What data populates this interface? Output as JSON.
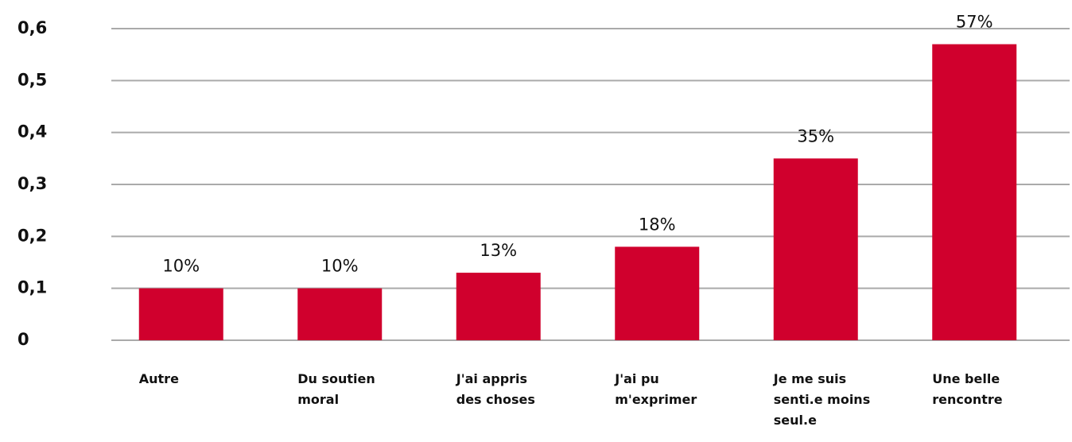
{
  "chart_data": {
    "type": "bar",
    "categories": [
      "Autre",
      "Du soutien moral",
      "J'ai appris des choses",
      "J'ai pu m'exprimer",
      "Je me suis senti.e moins seul.e",
      "Une belle rencontre"
    ],
    "values": [
      0.1,
      0.1,
      0.13,
      0.18,
      0.35,
      0.57
    ],
    "value_labels": [
      "10%",
      "10%",
      "13%",
      "18%",
      "35%",
      "57%"
    ],
    "color": "#d0002d",
    "ylim": [
      0,
      0.6
    ],
    "yticks": [
      0,
      {
        "value": 0.1,
        "label": "0,1"
      },
      {
        "value": 0.2,
        "label": "0,2"
      },
      {
        "value": 0.3,
        "label": "0,3"
      },
      {
        "value": 0.4,
        "label": "0,4"
      },
      {
        "value": 0.5,
        "label": "0,5"
      },
      {
        "value": 0.6,
        "label": "0,6"
      }
    ],
    "grid": true
  }
}
